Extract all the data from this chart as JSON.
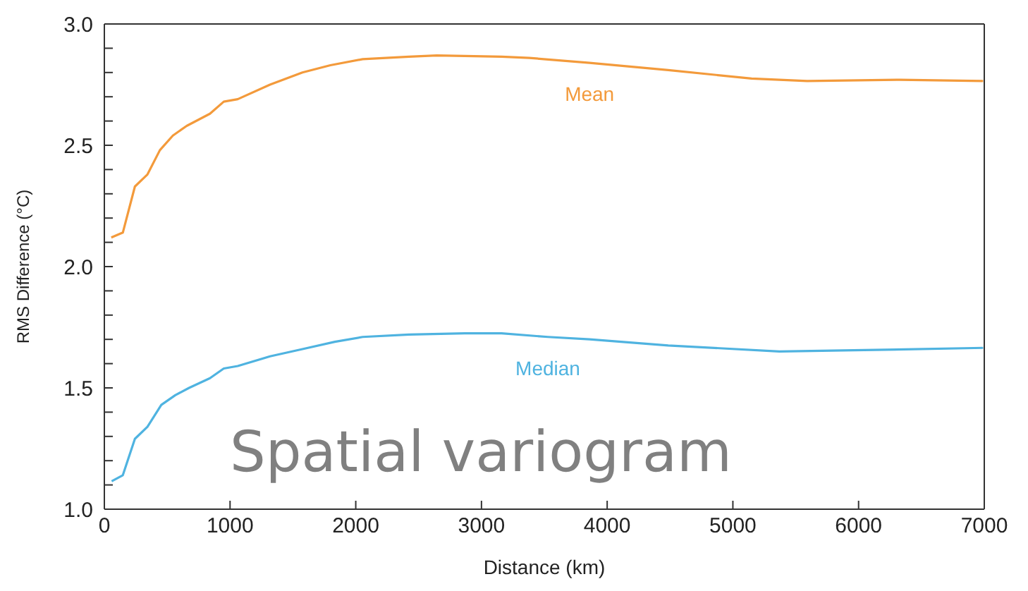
{
  "chart_data": {
    "type": "line",
    "xlabel": "Distance (km)",
    "ylabel": "RMS Difference (°C)",
    "xlim": [
      0,
      7000
    ],
    "xticks": [
      0,
      1000,
      2000,
      3000,
      4000,
      5000,
      6000,
      7000
    ],
    "ylim": [
      1.0,
      3.0
    ],
    "yticks": [
      {
        "value": 1.0,
        "label": "1.0"
      },
      {
        "value": 1.1,
        "label": null
      },
      {
        "value": 1.2,
        "label": null
      },
      {
        "value": 1.3,
        "label": null
      },
      {
        "value": 1.4,
        "label": null
      },
      {
        "value": 1.5,
        "label": "1.5"
      },
      {
        "value": 1.6,
        "label": null
      },
      {
        "value": 1.7,
        "label": null
      },
      {
        "value": 1.8,
        "label": null
      },
      {
        "value": 1.9,
        "label": null
      },
      {
        "value": 2.0,
        "label": "2.0"
      },
      {
        "value": 2.1,
        "label": null
      },
      {
        "value": 2.2,
        "label": null
      },
      {
        "value": 2.3,
        "label": null
      },
      {
        "value": 2.4,
        "label": null
      },
      {
        "value": 2.5,
        "label": "2.5"
      },
      {
        "value": 2.6,
        "label": null
      },
      {
        "value": 2.7,
        "label": null
      },
      {
        "value": 2.8,
        "label": null
      },
      {
        "value": 2.9,
        "label": null
      },
      {
        "value": 3.0,
        "label": "3.0"
      }
    ],
    "marker": "none",
    "line_style": "solid",
    "series": [
      {
        "name": "Mean",
        "color": "#f39a3b",
        "x": [
          55,
          147,
          243,
          343,
          442,
          545,
          655,
          840,
          950,
          1061,
          1318,
          1576,
          1798,
          2055,
          2424,
          2645,
          3160,
          3381,
          3860,
          4486,
          5149,
          5591,
          6328,
          6991
        ],
        "values": [
          2.12,
          2.14,
          2.33,
          2.38,
          2.48,
          2.54,
          2.58,
          2.63,
          2.68,
          2.69,
          2.75,
          2.8,
          2.83,
          2.855,
          2.865,
          2.87,
          2.865,
          2.86,
          2.84,
          2.81,
          2.775,
          2.765,
          2.77,
          2.765
        ]
      },
      {
        "name": "Median",
        "color": "#4fb3e0",
        "x": [
          58,
          147,
          243,
          343,
          453,
          564,
          674,
          840,
          950,
          1061,
          1318,
          1576,
          1834,
          2055,
          2424,
          2866,
          3160,
          3528,
          3860,
          4486,
          5370,
          5959,
          6991
        ],
        "values": [
          1.115,
          1.14,
          1.29,
          1.34,
          1.43,
          1.47,
          1.5,
          1.54,
          1.58,
          1.59,
          1.63,
          1.66,
          1.69,
          1.71,
          1.72,
          1.725,
          1.725,
          1.71,
          1.7,
          1.675,
          1.65,
          1.655,
          1.665
        ]
      }
    ],
    "annotations": [
      "Spatial variogram"
    ]
  }
}
